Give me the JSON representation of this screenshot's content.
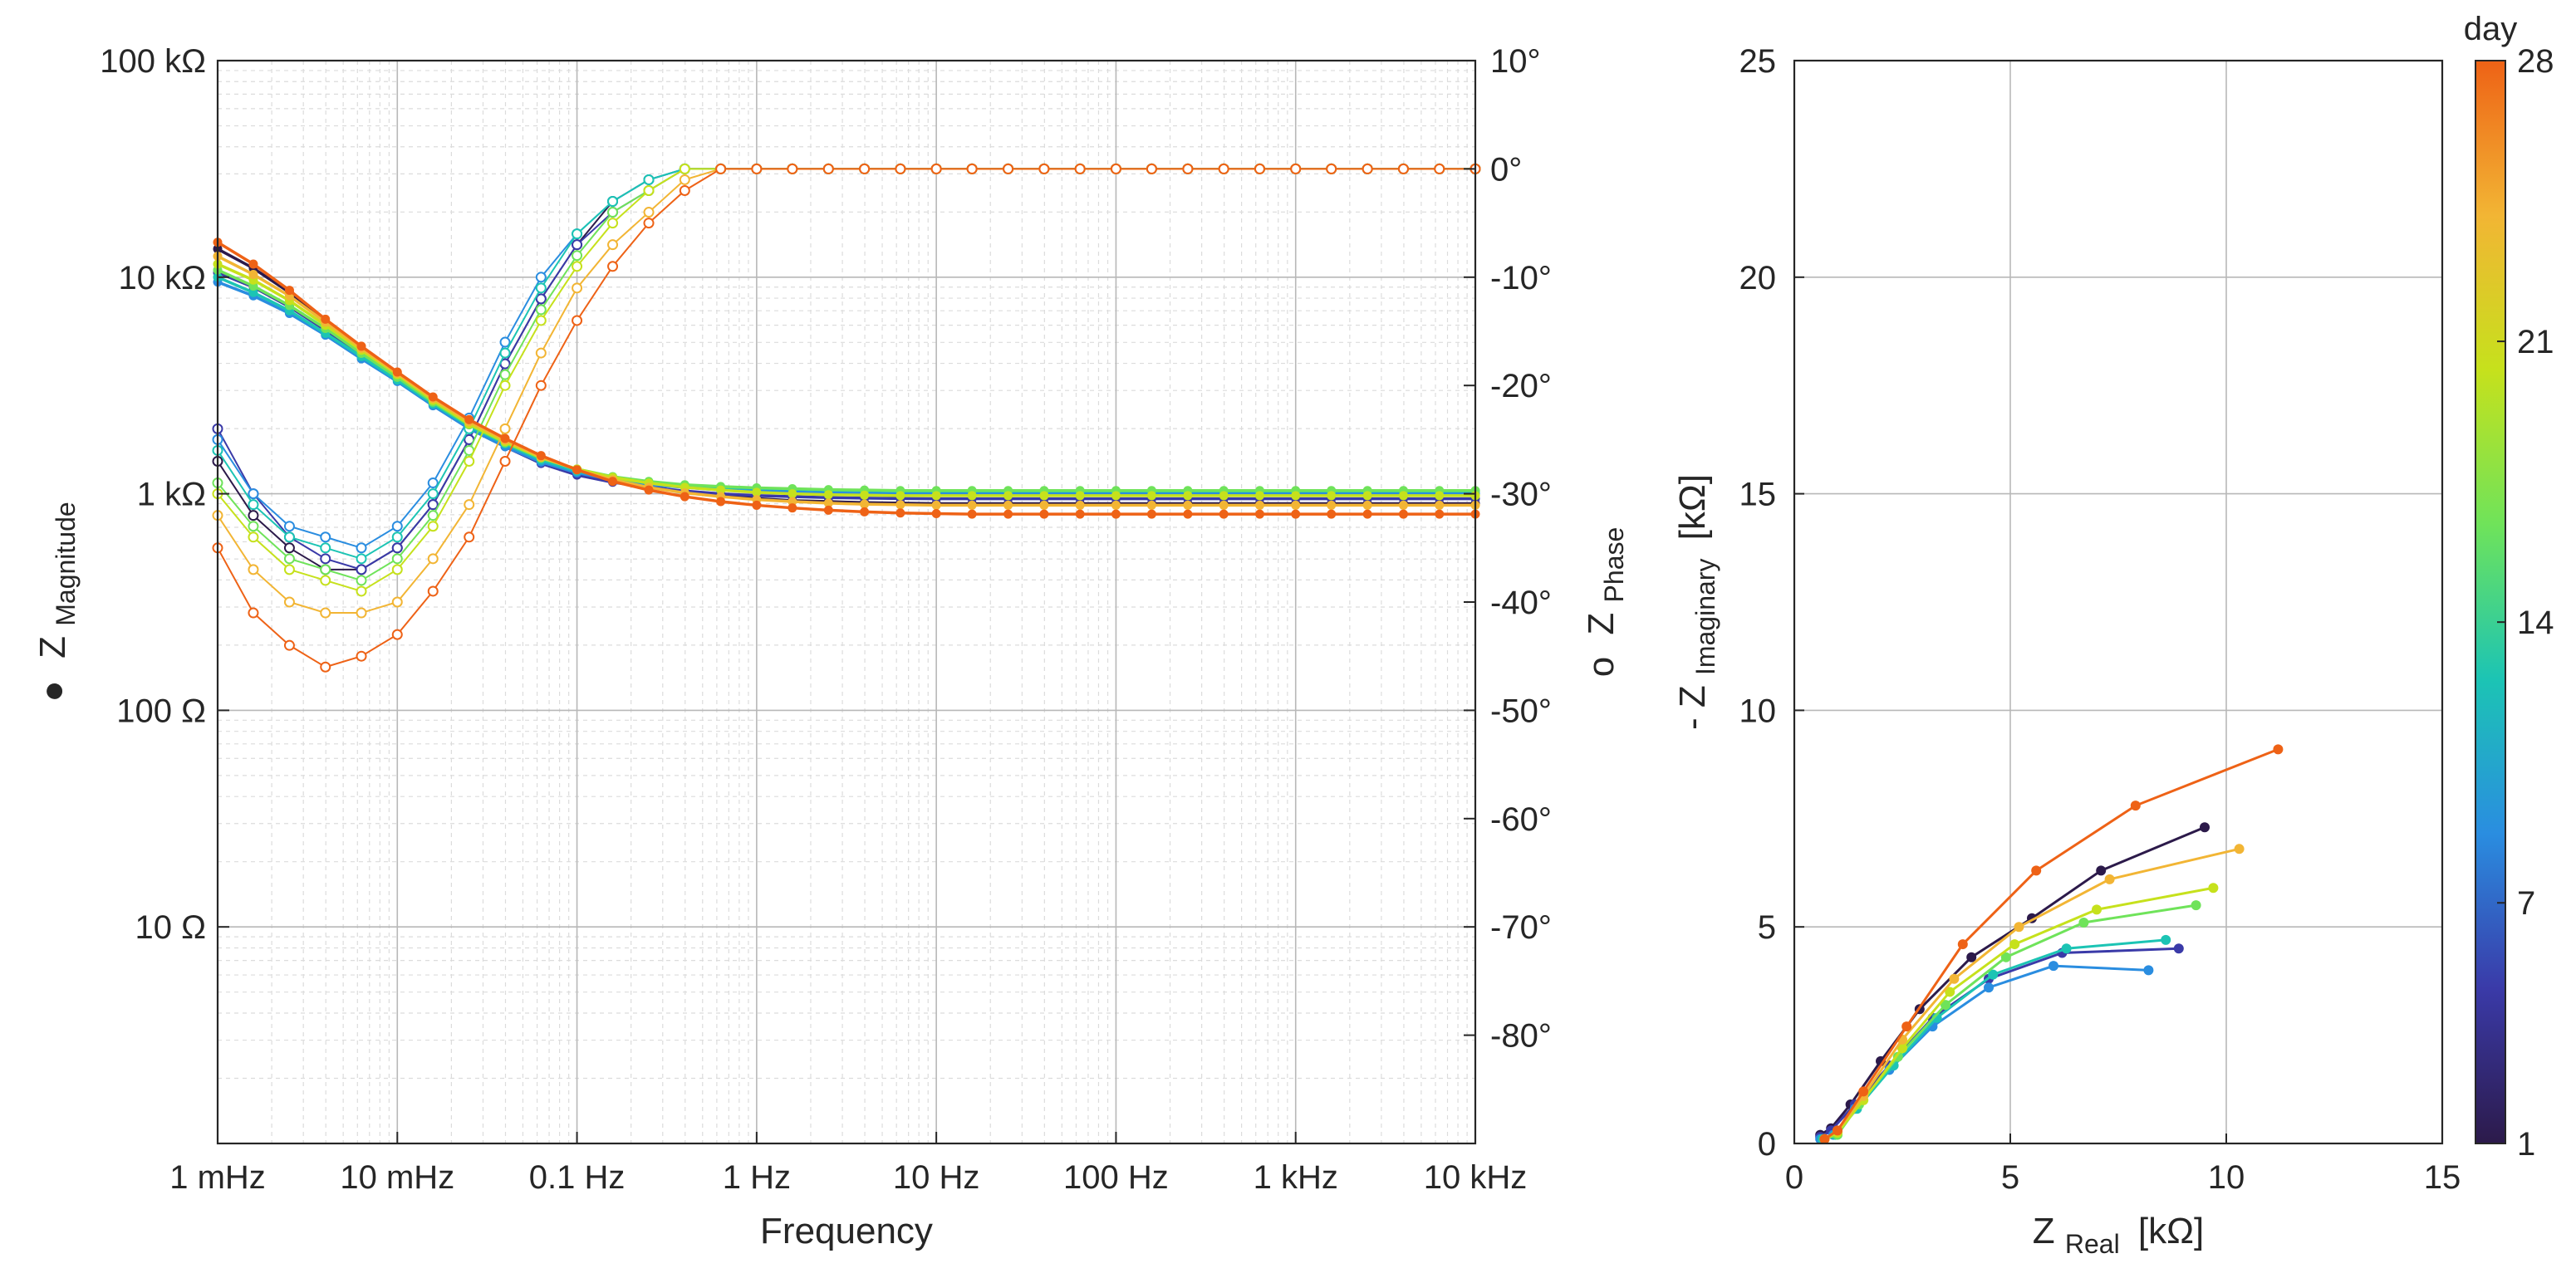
{
  "chart_data": [
    {
      "type": "line",
      "title": "",
      "xlabel": "Frequency",
      "xscale": "log",
      "xlim": [
        0.001,
        10000
      ],
      "xticks": [
        {
          "v": 0.001,
          "label": "1 mHz"
        },
        {
          "v": 0.01,
          "label": "10 mHz"
        },
        {
          "v": 0.1,
          "label": "0.1 Hz"
        },
        {
          "v": 1,
          "label": "1 Hz"
        },
        {
          "v": 10,
          "label": "10 Hz"
        },
        {
          "v": 100,
          "label": "100 Hz"
        },
        {
          "v": 1000,
          "label": "1 kHz"
        },
        {
          "v": 10000,
          "label": "10 kHz"
        }
      ],
      "ylabel_left": {
        "marker": "●",
        "main": "Z",
        "sub": "Magnitude"
      },
      "yscale_left": "log",
      "ylim_left": [
        1,
        100000
      ],
      "yticks_left": [
        {
          "v": 10,
          "label": "10 Ω"
        },
        {
          "v": 100,
          "label": "100 Ω"
        },
        {
          "v": 1000,
          "label": "1 kΩ"
        },
        {
          "v": 10000,
          "label": "10 kΩ"
        },
        {
          "v": 100000,
          "label": "100 kΩ"
        }
      ],
      "ylabel_right": {
        "marker": "o",
        "main": "Z",
        "sub": "Phase"
      },
      "ylim_right": [
        -90,
        10
      ],
      "yticks_right": [
        {
          "v": 10,
          "label": "10°"
        },
        {
          "v": 0,
          "label": "0°"
        },
        {
          "v": -10,
          "label": "-10°"
        },
        {
          "v": -20,
          "label": "-20°"
        },
        {
          "v": -30,
          "label": "-30°"
        },
        {
          "v": -40,
          "label": "-40°"
        },
        {
          "v": -50,
          "label": "-50°"
        },
        {
          "v": -60,
          "label": "-60°"
        },
        {
          "v": -70,
          "label": "-70°"
        },
        {
          "v": -80,
          "label": "-80°"
        }
      ],
      "frequencies": [
        0.001,
        0.00158,
        0.00251,
        0.00398,
        0.00631,
        0.01,
        0.0158,
        0.0251,
        0.0398,
        0.0631,
        0.1,
        0.158,
        0.251,
        0.398,
        0.631,
        1,
        1.58,
        2.51,
        3.98,
        6.31,
        10,
        15.8,
        25.1,
        39.8,
        63.1,
        100,
        158,
        251,
        398,
        631,
        1000,
        1580,
        2510,
        3980,
        6310,
        10000
      ],
      "series": [
        {
          "day": 1,
          "color": "#2c1a4a",
          "magnitude_ohm": [
            13500,
            11000,
            8500,
            6200,
            4600,
            3500,
            2700,
            2100,
            1750,
            1450,
            1250,
            1150,
            1080,
            1020,
            980,
            950,
            930,
            920,
            910,
            905,
            900,
            900,
            900,
            900,
            900,
            900,
            900,
            900,
            900,
            900,
            900,
            900,
            900,
            900,
            900,
            900
          ],
          "phase_deg": [
            -27,
            -32,
            -35,
            -37,
            -37,
            -35,
            -31,
            -25,
            -18,
            -12,
            -7,
            -3,
            -1,
            0,
            0,
            0,
            0,
            0,
            0,
            0,
            0,
            0,
            0,
            0,
            0,
            0,
            0,
            0,
            0,
            0,
            0,
            0,
            0,
            0,
            0,
            0
          ]
        },
        {
          "day": 5,
          "color": "#3a3aa8",
          "magnitude_ohm": [
            10500,
            9000,
            7300,
            5700,
            4400,
            3400,
            2600,
            2000,
            1650,
            1380,
            1220,
            1130,
            1070,
            1030,
            1000,
            980,
            970,
            960,
            955,
            950,
            948,
            948,
            948,
            948,
            948,
            948,
            948,
            948,
            948,
            948,
            948,
            948,
            948,
            948,
            948,
            948
          ],
          "phase_deg": [
            -24,
            -30,
            -34,
            -36,
            -37,
            -35,
            -31,
            -25,
            -18,
            -12,
            -7,
            -4,
            -2,
            0,
            0,
            0,
            0,
            0,
            0,
            0,
            0,
            0,
            0,
            0,
            0,
            0,
            0,
            0,
            0,
            0,
            0,
            0,
            0,
            0,
            0,
            0
          ]
        },
        {
          "day": 9,
          "color": "#2a8de0",
          "magnitude_ohm": [
            9500,
            8200,
            6800,
            5400,
            4200,
            3300,
            2550,
            2000,
            1650,
            1400,
            1250,
            1160,
            1100,
            1070,
            1040,
            1030,
            1020,
            1010,
            1005,
            1000,
            1000,
            1000,
            1000,
            1000,
            1000,
            1000,
            1000,
            1000,
            1000,
            1000,
            1000,
            1000,
            1000,
            1000,
            1000,
            1000
          ],
          "phase_deg": [
            -25,
            -30,
            -33,
            -34,
            -35,
            -33,
            -29,
            -23,
            -16,
            -10,
            -6,
            -3,
            -1,
            0,
            0,
            0,
            0,
            0,
            0,
            0,
            0,
            0,
            0,
            0,
            0,
            0,
            0,
            0,
            0,
            0,
            0,
            0,
            0,
            0,
            0,
            0
          ]
        },
        {
          "day": 13,
          "color": "#1cc4b4",
          "magnitude_ohm": [
            10000,
            8500,
            7000,
            5500,
            4300,
            3350,
            2600,
            2050,
            1700,
            1430,
            1270,
            1180,
            1120,
            1090,
            1070,
            1060,
            1050,
            1040,
            1035,
            1030,
            1030,
            1030,
            1030,
            1030,
            1030,
            1030,
            1030,
            1030,
            1030,
            1030,
            1030,
            1030,
            1030,
            1030,
            1030,
            1030
          ],
          "phase_deg": [
            -26,
            -31,
            -34,
            -35,
            -36,
            -34,
            -30,
            -24,
            -17,
            -11,
            -6,
            -3,
            -1,
            0,
            0,
            0,
            0,
            0,
            0,
            0,
            0,
            0,
            0,
            0,
            0,
            0,
            0,
            0,
            0,
            0,
            0,
            0,
            0,
            0,
            0,
            0
          ]
        },
        {
          "day": 17,
          "color": "#6fe35a",
          "magnitude_ohm": [
            10800,
            9100,
            7400,
            5800,
            4450,
            3450,
            2650,
            2080,
            1720,
            1460,
            1300,
            1200,
            1140,
            1100,
            1080,
            1065,
            1055,
            1045,
            1040,
            1035,
            1035,
            1035,
            1035,
            1035,
            1035,
            1035,
            1035,
            1035,
            1035,
            1035,
            1035,
            1035,
            1035,
            1035,
            1035,
            1035
          ],
          "phase_deg": [
            -29,
            -33,
            -36,
            -37,
            -38,
            -36,
            -32,
            -26,
            -19,
            -13,
            -8,
            -4,
            -2,
            0,
            0,
            0,
            0,
            0,
            0,
            0,
            0,
            0,
            0,
            0,
            0,
            0,
            0,
            0,
            0,
            0,
            0,
            0,
            0,
            0,
            0,
            0
          ]
        },
        {
          "day": 21,
          "color": "#c6e11c",
          "magnitude_ohm": [
            11500,
            9700,
            7800,
            6000,
            4600,
            3550,
            2700,
            2100,
            1740,
            1470,
            1300,
            1190,
            1120,
            1070,
            1040,
            1015,
            1000,
            990,
            985,
            980,
            980,
            980,
            980,
            980,
            980,
            980,
            980,
            980,
            980,
            980,
            980,
            980,
            980,
            980,
            980,
            980
          ],
          "phase_deg": [
            -30,
            -34,
            -37,
            -38,
            -39,
            -37,
            -33,
            -27,
            -20,
            -14,
            -9,
            -5,
            -2,
            0,
            0,
            0,
            0,
            0,
            0,
            0,
            0,
            0,
            0,
            0,
            0,
            0,
            0,
            0,
            0,
            0,
            0,
            0,
            0,
            0,
            0,
            0
          ]
        },
        {
          "day": 24,
          "color": "#f2b534",
          "magnitude_ohm": [
            12500,
            10300,
            8200,
            6200,
            4700,
            3600,
            2750,
            2150,
            1770,
            1480,
            1290,
            1160,
            1070,
            1010,
            970,
            940,
            920,
            905,
            895,
            890,
            885,
            885,
            885,
            885,
            885,
            885,
            885,
            885,
            885,
            885,
            885,
            885,
            885,
            885,
            885,
            885
          ],
          "phase_deg": [
            -32,
            -37,
            -40,
            -41,
            -41,
            -40,
            -36,
            -31,
            -24,
            -17,
            -11,
            -7,
            -4,
            -1,
            0,
            0,
            0,
            0,
            0,
            0,
            0,
            0,
            0,
            0,
            0,
            0,
            0,
            0,
            0,
            0,
            0,
            0,
            0,
            0,
            0,
            0
          ]
        },
        {
          "day": 28,
          "color": "#ee6216",
          "magnitude_ohm": [
            14500,
            11500,
            8700,
            6400,
            4800,
            3650,
            2800,
            2200,
            1800,
            1500,
            1290,
            1140,
            1040,
            970,
            920,
            885,
            860,
            840,
            825,
            815,
            810,
            805,
            805,
            805,
            805,
            805,
            805,
            805,
            805,
            805,
            805,
            805,
            805,
            805,
            805,
            805
          ],
          "phase_deg": [
            -35,
            -41,
            -44,
            -46,
            -45,
            -43,
            -39,
            -34,
            -27,
            -20,
            -14,
            -9,
            -5,
            -2,
            0,
            0,
            0,
            0,
            0,
            0,
            0,
            0,
            0,
            0,
            0,
            0,
            0,
            0,
            0,
            0,
            0,
            0,
            0,
            0,
            0,
            0
          ]
        }
      ]
    },
    {
      "type": "line",
      "title": "",
      "xlabel": {
        "main": "Z",
        "sub": "Real",
        "unit": "[kΩ]"
      },
      "ylabel": {
        "prefix": "- Z",
        "sub": "Imaginary",
        "unit": "[kΩ]"
      },
      "xlim": [
        0,
        15
      ],
      "ylim": [
        0,
        25
      ],
      "xticks": [
        0,
        5,
        10,
        15
      ],
      "yticks": [
        0,
        5,
        10,
        15,
        20,
        25
      ],
      "series": [
        {
          "day": 1,
          "color": "#2c1a4a",
          "points": [
            [
              0.6,
              0.2
            ],
            [
              0.85,
              0.35
            ],
            [
              1.3,
              0.9
            ],
            [
              2.0,
              1.9
            ],
            [
              2.9,
              3.1
            ],
            [
              4.1,
              4.3
            ],
            [
              5.5,
              5.2
            ],
            [
              7.1,
              6.3
            ],
            [
              9.5,
              7.3
            ]
          ]
        },
        {
          "day": 5,
          "color": "#3a3aa8",
          "points": [
            [
              0.6,
              0.15
            ],
            [
              0.85,
              0.3
            ],
            [
              1.4,
              0.9
            ],
            [
              2.2,
              1.8
            ],
            [
              3.2,
              2.9
            ],
            [
              4.5,
              3.8
            ],
            [
              6.2,
              4.4
            ],
            [
              8.9,
              4.5
            ]
          ]
        },
        {
          "day": 9,
          "color": "#2a8de0",
          "points": [
            [
              0.6,
              0.1
            ],
            [
              0.9,
              0.2
            ],
            [
              1.4,
              0.8
            ],
            [
              2.2,
              1.7
            ],
            [
              3.2,
              2.7
            ],
            [
              4.5,
              3.6
            ],
            [
              6.0,
              4.1
            ],
            [
              8.2,
              4.0
            ]
          ]
        },
        {
          "day": 13,
          "color": "#1cc4b4",
          "points": [
            [
              0.65,
              0.1
            ],
            [
              0.95,
              0.2
            ],
            [
              1.45,
              0.8
            ],
            [
              2.3,
              1.8
            ],
            [
              3.3,
              2.9
            ],
            [
              4.6,
              3.9
            ],
            [
              6.3,
              4.5
            ],
            [
              8.6,
              4.7
            ]
          ]
        },
        {
          "day": 17,
          "color": "#6fe35a",
          "points": [
            [
              0.7,
              0.1
            ],
            [
              1.0,
              0.2
            ],
            [
              1.5,
              0.9
            ],
            [
              2.4,
              2.0
            ],
            [
              3.5,
              3.2
            ],
            [
              4.9,
              4.3
            ],
            [
              6.7,
              5.1
            ],
            [
              9.3,
              5.5
            ]
          ]
        },
        {
          "day": 21,
          "color": "#c6e11c",
          "points": [
            [
              0.7,
              0.1
            ],
            [
              1.0,
              0.25
            ],
            [
              1.6,
              1.0
            ],
            [
              2.5,
              2.2
            ],
            [
              3.6,
              3.5
            ],
            [
              5.1,
              4.6
            ],
            [
              7.0,
              5.4
            ],
            [
              9.7,
              5.9
            ]
          ]
        },
        {
          "day": 24,
          "color": "#f2b534",
          "points": [
            [
              0.7,
              0.1
            ],
            [
              1.0,
              0.3
            ],
            [
              1.6,
              1.1
            ],
            [
              2.5,
              2.4
            ],
            [
              3.7,
              3.8
            ],
            [
              5.2,
              5.0
            ],
            [
              7.3,
              6.1
            ],
            [
              10.3,
              6.8
            ]
          ]
        },
        {
          "day": 28,
          "color": "#ee6216",
          "points": [
            [
              0.7,
              0.1
            ],
            [
              1.0,
              0.3
            ],
            [
              1.6,
              1.2
            ],
            [
              2.6,
              2.7
            ],
            [
              3.9,
              4.6
            ],
            [
              5.6,
              6.3
            ],
            [
              7.9,
              7.8
            ],
            [
              11.2,
              9.1
            ]
          ]
        }
      ]
    }
  ],
  "colorbar": {
    "title": "day",
    "min": 1,
    "max": 28,
    "ticks": [
      1,
      7,
      14,
      21,
      28
    ],
    "colors": [
      "#2c1a4a",
      "#3a3aa8",
      "#2a8de0",
      "#1cc4b4",
      "#6fe35a",
      "#c6e11c",
      "#f2b534",
      "#ee6216"
    ]
  }
}
